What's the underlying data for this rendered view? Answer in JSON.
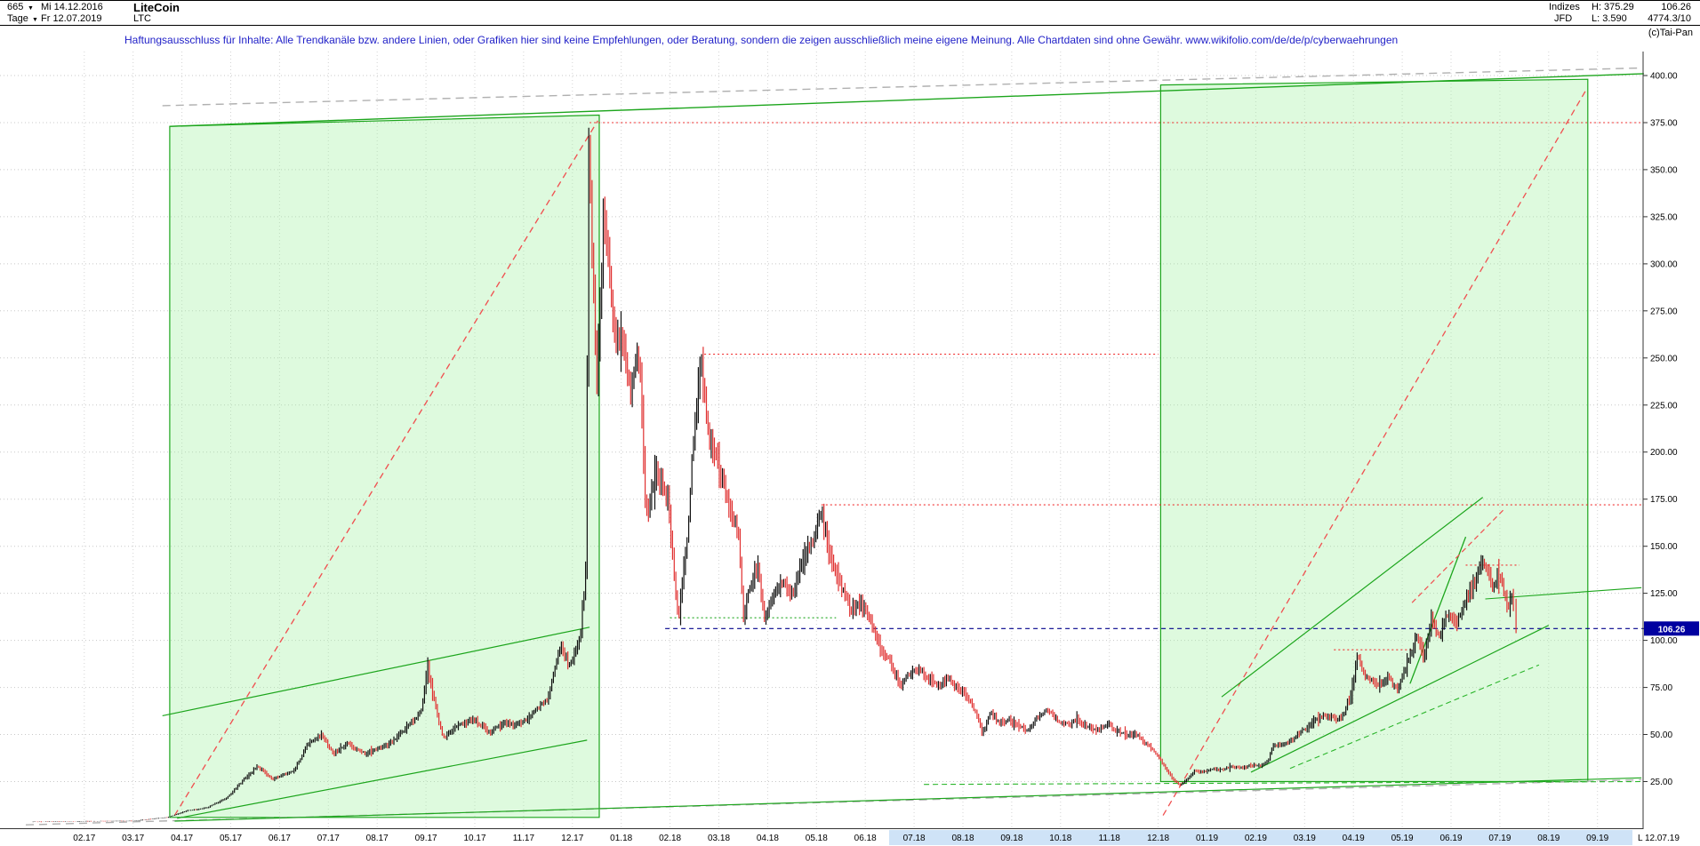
{
  "header": {
    "bar_count": "665",
    "start_date": "Mi 14.12.2016",
    "instrument": "LiteCoin",
    "timeframe": "Tage",
    "end_date": "Fr 12.07.2019",
    "symbol": "LTC",
    "right": {
      "indizes": "Indizes",
      "jfd": "JFD",
      "high_label": "H: 375.29",
      "low_label": "L: 3.590",
      "last_price": "106.26",
      "volume": "4774.3/10",
      "copyright": "(c)Tai-Pan"
    }
  },
  "icons": {
    "dropdown_glyph": "▼"
  },
  "disclaimer": "Haftungsausschluss für Inhalte: Alle Trendkanäle bzw. andere Linien, oder Grafiken hier sind keine Empfehlungen, oder Beratung, sondern die zeigen ausschließlich meine eigene Meinung. Alle Chartdaten sind ohne Gewähr.  www.wikifolio.com/de/de/p/cyberwaehrungen",
  "chart_data": {
    "type": "candlestick",
    "title": "LiteCoin (LTC) Tageschart 14.12.2016 - 12.07.2019",
    "instrument": "LiteCoin",
    "symbol": "LTC",
    "period_high": 375.29,
    "period_low": 3.59,
    "last_price": 106.26,
    "t_start": 0.55,
    "t_end": 30.93,
    "x_axis": {
      "month_labels": [
        "02.17",
        "03.17",
        "04.17",
        "05.17",
        "06.17",
        "07.17",
        "08.17",
        "09.17",
        "10.17",
        "11.17",
        "12.17",
        "01.18",
        "02.18",
        "03.18",
        "04.18",
        "05.18",
        "06.18",
        "07.18",
        "08.18",
        "09.18",
        "10.18",
        "11.18",
        "12.18",
        "01.19",
        "02.19",
        "03.19",
        "04.19",
        "05.19",
        "06.19",
        "07.19",
        "08.19",
        "09.19"
      ],
      "last_label": "L  12.07.19"
    },
    "y_axis": {
      "min": 0,
      "max": 410,
      "tick_step": 25,
      "ticks": [
        400,
        375,
        350,
        325,
        300,
        275,
        250,
        225,
        200,
        175,
        150,
        125,
        100,
        75,
        50,
        25
      ]
    },
    "colors": {
      "up": "#111111",
      "down": "#e03030",
      "grid": "#c8c8c8",
      "frame": "#333333",
      "badge_bg": "#0000a0",
      "badge_text": "#ffffff",
      "box_fill": "rgba(160,240,160,0.35)",
      "box_stroke": "#1ca51c"
    },
    "price_path": [
      [
        0.55,
        3.6
      ],
      [
        1.6,
        3.9
      ],
      [
        2.6,
        4.1
      ],
      [
        3.3,
        6
      ],
      [
        3.7,
        9.5
      ],
      [
        4.1,
        11
      ],
      [
        4.5,
        16
      ],
      [
        4.9,
        27
      ],
      [
        5.15,
        33
      ],
      [
        5.45,
        26
      ],
      [
        5.9,
        31
      ],
      [
        6.2,
        46
      ],
      [
        6.45,
        50
      ],
      [
        6.7,
        40
      ],
      [
        7.0,
        45
      ],
      [
        7.35,
        40
      ],
      [
        7.8,
        44
      ],
      [
        8.1,
        51
      ],
      [
        8.5,
        62
      ],
      [
        8.63,
        86
      ],
      [
        8.78,
        66
      ],
      [
        8.95,
        48
      ],
      [
        9.2,
        54
      ],
      [
        9.6,
        58
      ],
      [
        9.9,
        51
      ],
      [
        10.2,
        56
      ],
      [
        10.5,
        55
      ],
      [
        10.8,
        61
      ],
      [
        11.1,
        70
      ],
      [
        11.35,
        97
      ],
      [
        11.55,
        86
      ],
      [
        11.75,
        100
      ],
      [
        11.88,
        140
      ],
      [
        11.93,
        370
      ],
      [
        12.0,
        305
      ],
      [
        12.1,
        238
      ],
      [
        12.25,
        330
      ],
      [
        12.45,
        265
      ],
      [
        12.65,
        255
      ],
      [
        12.8,
        232
      ],
      [
        12.9,
        252
      ],
      [
        13.0,
        240
      ],
      [
        13.1,
        165
      ],
      [
        13.3,
        190
      ],
      [
        13.55,
        175
      ],
      [
        13.77,
        110
      ],
      [
        13.95,
        155
      ],
      [
        14.1,
        215
      ],
      [
        14.23,
        250
      ],
      [
        14.4,
        205
      ],
      [
        14.6,
        192
      ],
      [
        14.8,
        172
      ],
      [
        15.0,
        158
      ],
      [
        15.1,
        113
      ],
      [
        15.25,
        130
      ],
      [
        15.4,
        140
      ],
      [
        15.53,
        112
      ],
      [
        15.7,
        122
      ],
      [
        15.9,
        132
      ],
      [
        16.1,
        124
      ],
      [
        16.3,
        142
      ],
      [
        16.5,
        152
      ],
      [
        16.7,
        168
      ],
      [
        16.9,
        142
      ],
      [
        17.1,
        128
      ],
      [
        17.3,
        116
      ],
      [
        17.5,
        120
      ],
      [
        17.7,
        112
      ],
      [
        17.9,
        96
      ],
      [
        18.1,
        90
      ],
      [
        18.3,
        76
      ],
      [
        18.5,
        82
      ],
      [
        18.7,
        84
      ],
      [
        18.9,
        80
      ],
      [
        19.1,
        76
      ],
      [
        19.3,
        80
      ],
      [
        19.5,
        74
      ],
      [
        19.7,
        70
      ],
      [
        19.9,
        60
      ],
      [
        20.0,
        50
      ],
      [
        20.15,
        62
      ],
      [
        20.35,
        56
      ],
      [
        20.55,
        58
      ],
      [
        20.75,
        54
      ],
      [
        20.95,
        52
      ],
      [
        21.15,
        60
      ],
      [
        21.35,
        63
      ],
      [
        21.55,
        57
      ],
      [
        21.75,
        55
      ],
      [
        21.95,
        58
      ],
      [
        22.15,
        54
      ],
      [
        22.35,
        52
      ],
      [
        22.55,
        56
      ],
      [
        22.75,
        52
      ],
      [
        22.95,
        50
      ],
      [
        23.15,
        50
      ],
      [
        23.35,
        45
      ],
      [
        23.5,
        42
      ],
      [
        23.65,
        36
      ],
      [
        23.8,
        30
      ],
      [
        23.95,
        25
      ],
      [
        24.05,
        23.2
      ],
      [
        24.2,
        26
      ],
      [
        24.35,
        31
      ],
      [
        24.5,
        30
      ],
      [
        24.7,
        32
      ],
      [
        24.9,
        31
      ],
      [
        25.1,
        33
      ],
      [
        25.3,
        32
      ],
      [
        25.5,
        34
      ],
      [
        25.7,
        33
      ],
      [
        25.85,
        36
      ],
      [
        25.95,
        45
      ],
      [
        26.15,
        44
      ],
      [
        26.35,
        47
      ],
      [
        26.55,
        52
      ],
      [
        26.75,
        56
      ],
      [
        26.95,
        60
      ],
      [
        27.15,
        59
      ],
      [
        27.35,
        58
      ],
      [
        27.55,
        72
      ],
      [
        27.68,
        92
      ],
      [
        27.8,
        82
      ],
      [
        27.95,
        79
      ],
      [
        28.1,
        75
      ],
      [
        28.3,
        80
      ],
      [
        28.5,
        74
      ],
      [
        28.7,
        88
      ],
      [
        28.9,
        102
      ],
      [
        29.05,
        91
      ],
      [
        29.2,
        112
      ],
      [
        29.35,
        102
      ],
      [
        29.5,
        114
      ],
      [
        29.7,
        108
      ],
      [
        29.9,
        122
      ],
      [
        30.1,
        132
      ],
      [
        30.27,
        143
      ],
      [
        30.45,
        128
      ],
      [
        30.6,
        135
      ],
      [
        30.75,
        118
      ],
      [
        30.85,
        124
      ],
      [
        30.93,
        106.26
      ]
    ],
    "boxes": [
      {
        "name": "trend-box-2017",
        "points": [
          [
            3.35,
            373
          ],
          [
            12.15,
            379
          ],
          [
            12.15,
            6
          ],
          [
            3.35,
            6
          ]
        ]
      },
      {
        "name": "trend-box-2019",
        "points": [
          [
            23.65,
            395
          ],
          [
            32.4,
            398
          ],
          [
            32.4,
            25
          ],
          [
            23.65,
            25
          ]
        ]
      }
    ],
    "overlays": [
      {
        "name": "gray-dash-top",
        "p1": [
          3.2,
          384
        ],
        "p2": [
          33.5,
          404
        ],
        "color": "#b0b0b0",
        "dash": "9,6",
        "w": 1.4
      },
      {
        "name": "gray-dash-bottom",
        "p1": [
          0.4,
          2
        ],
        "p2": [
          33.5,
          26
        ],
        "color": "#b0b0b0",
        "dash": "9,6",
        "w": 1.4
      },
      {
        "name": "red-dash-rally-2017",
        "p1": [
          3.45,
          7
        ],
        "p2": [
          12.12,
          376
        ],
        "color": "#f05050",
        "dash": "7,5",
        "w": 1.3
      },
      {
        "name": "red-dash-rally-2019",
        "p1": [
          23.7,
          7
        ],
        "p2": [
          32.38,
          393
        ],
        "color": "#f05050",
        "dash": "7,5",
        "w": 1.3
      },
      {
        "name": "green-long-top",
        "p1": [
          3.35,
          373
        ],
        "p2": [
          33.55,
          401
        ],
        "color": "#1ca51c",
        "w": 1.4
      },
      {
        "name": "green-long-bottom",
        "p1": [
          3.45,
          4
        ],
        "p2": [
          33.5,
          27
        ],
        "color": "#1ca51c",
        "w": 1.2
      },
      {
        "name": "green-channel-2017-upper",
        "p1": [
          3.2,
          60
        ],
        "p2": [
          11.95,
          107
        ],
        "color": "#1ca51c",
        "w": 1.2
      },
      {
        "name": "green-channel-2017-lower",
        "p1": [
          3.5,
          5.5
        ],
        "p2": [
          11.9,
          47
        ],
        "color": "#1ca51c",
        "w": 1.2
      },
      {
        "name": "red-dot-resistance-375",
        "p1": [
          11.95,
          375
        ],
        "p2": [
          33.55,
          375
        ],
        "color": "#f03030",
        "dash": "2,3",
        "w": 1.1
      },
      {
        "name": "red-dot-resistance-252",
        "p1": [
          14.3,
          252
        ],
        "p2": [
          23.6,
          252
        ],
        "color": "#f03030",
        "dash": "2,3",
        "w": 1.1
      },
      {
        "name": "red-dot-resistance-172",
        "p1": [
          16.7,
          172
        ],
        "p2": [
          33.55,
          172
        ],
        "color": "#f03030",
        "dash": "2,3",
        "w": 1.1
      },
      {
        "name": "blue-dash-last-price",
        "p1": [
          13.5,
          106.26
        ],
        "p2": [
          33.6,
          106.26
        ],
        "color": "#00008b",
        "dash": "5,4",
        "w": 1.2
      },
      {
        "name": "green-dot-112",
        "p1": [
          13.6,
          112
        ],
        "p2": [
          17.0,
          112
        ],
        "color": "#1ca51c",
        "dash": "2,3",
        "w": 1.1
      },
      {
        "name": "red-dot-95",
        "p1": [
          27.2,
          95
        ],
        "p2": [
          28.8,
          95
        ],
        "color": "#f03030",
        "dash": "2,3",
        "w": 1.1
      },
      {
        "name": "green-2019-steep",
        "p1": [
          24.9,
          70
        ],
        "p2": [
          30.25,
          176
        ],
        "color": "#1ca51c",
        "w": 1.2
      },
      {
        "name": "green-2019-lower",
        "p1": [
          25.5,
          30
        ],
        "p2": [
          31.6,
          108
        ],
        "color": "#1ca51c",
        "w": 1.2
      },
      {
        "name": "green-2019-short-steep",
        "p1": [
          28.76,
          77
        ],
        "p2": [
          29.9,
          155
        ],
        "color": "#1ca51c",
        "w": 1.3
      },
      {
        "name": "green-dash-2019-mid",
        "p1": [
          26.3,
          32
        ],
        "p2": [
          31.4,
          87
        ],
        "color": "#2bb52b",
        "dash": "6,4",
        "w": 1.1
      },
      {
        "name": "red-dash-2019-top",
        "p1": [
          28.8,
          120
        ],
        "p2": [
          30.7,
          170
        ],
        "color": "#f05050",
        "dash": "6,4",
        "w": 1.2
      },
      {
        "name": "red-dot-140",
        "p1": [
          29.9,
          140
        ],
        "p2": [
          31.0,
          140
        ],
        "color": "#f03030",
        "dash": "2,3",
        "w": 1.1
      },
      {
        "name": "green-dash-support-25",
        "p1": [
          18.8,
          23.5
        ],
        "p2": [
          33.5,
          25
        ],
        "color": "#2bb52b",
        "dash": "6,4",
        "w": 1.1
      },
      {
        "name": "green-2019-ext",
        "p1": [
          30.3,
          122
        ],
        "p2": [
          33.5,
          128
        ],
        "color": "#1ca51c",
        "w": 1.1
      }
    ]
  }
}
